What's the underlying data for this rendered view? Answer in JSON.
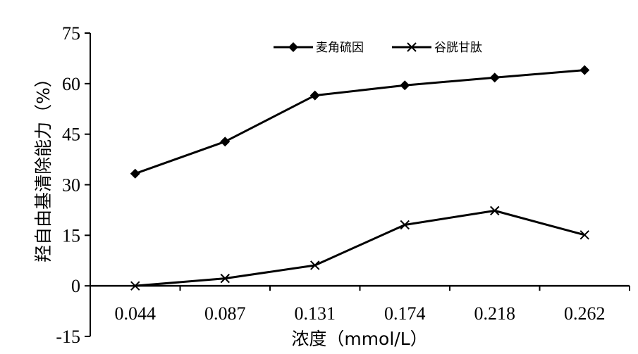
{
  "chart_data": {
    "type": "line",
    "categories": [
      "0.044",
      "0.087",
      "0.131",
      "0.174",
      "0.218",
      "0.262"
    ],
    "xlabel": "浓度（mmol/L）",
    "ylabel": "羟自由基清除能力（%）",
    "ylim": [
      -15,
      75
    ],
    "yticks": [
      "-15",
      "0",
      "15",
      "30",
      "45",
      "60",
      "75"
    ],
    "grid": false,
    "legend": "top-center",
    "series": [
      {
        "name": "麦角硫因",
        "marker": "diamond",
        "color": "#000000",
        "values": [
          33.3,
          42.8,
          56.5,
          59.5,
          61.8,
          64.0
        ]
      },
      {
        "name": "谷胱甘肽",
        "marker": "x",
        "color": "#000000",
        "values": [
          0.0,
          2.2,
          6.1,
          18.1,
          22.3,
          15.1
        ]
      }
    ]
  }
}
